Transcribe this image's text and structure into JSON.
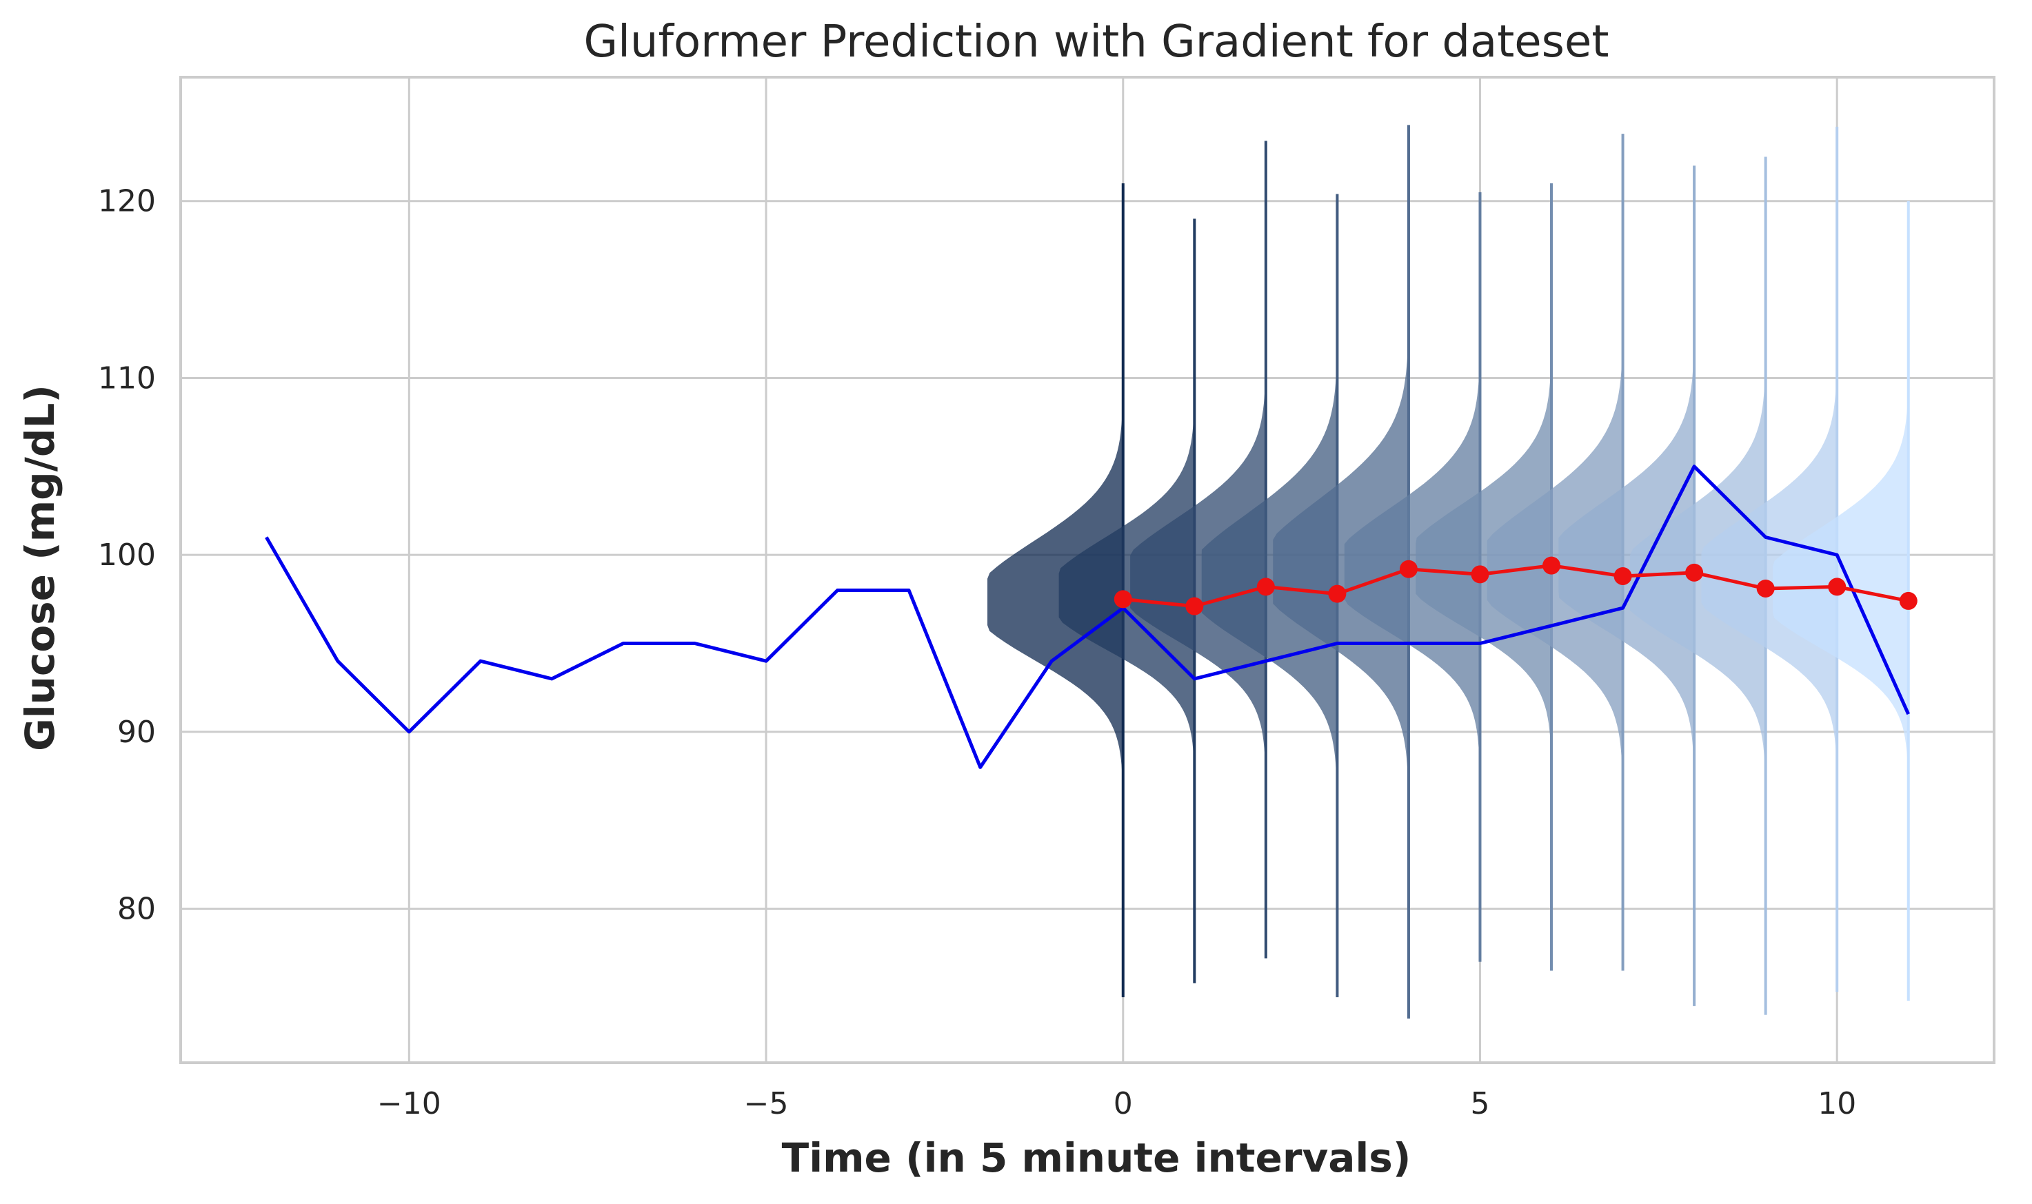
{
  "chart_data": {
    "type": "line",
    "title": "Gluformer Prediction with Gradient for dateset",
    "xlabel": "Time (in 5 minute intervals)",
    "ylabel": "Glucose (mg/dL)",
    "xlim": [
      -13.2,
      12.2
    ],
    "ylim": [
      71.3,
      127
    ],
    "x_ticks": [
      -10,
      -5,
      0,
      5,
      10
    ],
    "x_tick_labels": [
      "−10",
      "−5",
      "0",
      "5",
      "10"
    ],
    "y_ticks": [
      80,
      90,
      100,
      110,
      120
    ],
    "y_tick_labels": [
      "80",
      "90",
      "100",
      "110",
      "120"
    ],
    "grid": true,
    "legend": "none",
    "colors": {
      "actual": "#0000ee",
      "prediction": "#ee1111",
      "gradient_start": "#102a50",
      "gradient_end": "#c6e0ff",
      "grid": "#cccccc",
      "frame": "#cccccc"
    },
    "series": [
      {
        "x": [
          -12,
          -11,
          -10,
          -9,
          -8,
          -7,
          -6,
          -5,
          -4,
          -3,
          -2,
          -1,
          0,
          1,
          2,
          3,
          4,
          5,
          6,
          7,
          8,
          9,
          10,
          11
        ],
        "values": [
          101,
          94,
          90,
          94,
          93,
          95,
          95,
          94,
          98,
          98,
          88,
          94,
          97,
          93,
          94,
          95,
          95,
          95,
          96,
          97,
          105,
          101,
          100,
          91
        ]
      },
      {
        "x": [
          0,
          1,
          2,
          3,
          4,
          5,
          6,
          7,
          8,
          9,
          10,
          11
        ],
        "values": [
          97.5,
          97.1,
          98.2,
          97.8,
          99.2,
          98.9,
          99.4,
          98.8,
          99.0,
          98.1,
          98.2,
          97.4
        ]
      }
    ],
    "distributions": [
      {
        "x": 0,
        "y_min": 75,
        "y_max": 121,
        "mode": 97.8,
        "spread": 3.2,
        "width": 1.9
      },
      {
        "x": 1,
        "y_min": 75.8,
        "y_max": 119,
        "mode": 98.2,
        "spread": 3.0,
        "width": 1.9
      },
      {
        "x": 2,
        "y_min": 77.2,
        "y_max": 123.4,
        "mode": 99.0,
        "spread": 3.3,
        "width": 1.9
      },
      {
        "x": 3,
        "y_min": 75,
        "y_max": 120.4,
        "mode": 99.0,
        "spread": 3.6,
        "width": 1.9
      },
      {
        "x": 4,
        "y_min": 73.8,
        "y_max": 124.3,
        "mode": 99.6,
        "spread": 3.8,
        "width": 1.9
      },
      {
        "x": 5,
        "y_min": 77,
        "y_max": 120.5,
        "mode": 99.5,
        "spread": 3.4,
        "width": 1.9
      },
      {
        "x": 6,
        "y_min": 76.5,
        "y_max": 121,
        "mode": 99.8,
        "spread": 3.3,
        "width": 1.9
      },
      {
        "x": 7,
        "y_min": 76.5,
        "y_max": 123.8,
        "mode": 99.6,
        "spread": 3.6,
        "width": 1.9
      },
      {
        "x": 8,
        "y_min": 74.5,
        "y_max": 122,
        "mode": 99.8,
        "spread": 3.5,
        "width": 1.9
      },
      {
        "x": 9,
        "y_min": 74,
        "y_max": 122.5,
        "mode": 99.0,
        "spread": 3.4,
        "width": 1.9
      },
      {
        "x": 10,
        "y_min": 75.3,
        "y_max": 124.2,
        "mode": 99.2,
        "spread": 3.3,
        "width": 1.9
      },
      {
        "x": 11,
        "y_min": 74.8,
        "y_max": 120,
        "mode": 98.5,
        "spread": 3.2,
        "width": 1.9
      }
    ]
  }
}
